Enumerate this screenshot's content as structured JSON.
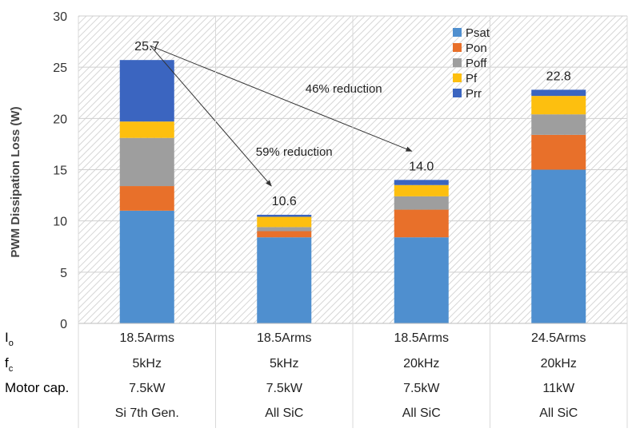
{
  "chart_data": {
    "type": "bar",
    "stacked": true,
    "ylabel": "PWM Dissipation  Loss (W)",
    "ylim": [
      0,
      30
    ],
    "yticks": [
      0,
      5,
      10,
      15,
      20,
      25,
      30
    ],
    "grid": true,
    "legend_position": "top-right",
    "categories": [
      [
        "18.5Arms",
        "5kHz",
        "7.5kW",
        "Si 7th Gen."
      ],
      [
        "18.5Arms",
        "5kHz",
        "7.5kW",
        "All SiC"
      ],
      [
        "18.5Arms",
        "20kHz",
        "7.5kW",
        "All SiC"
      ],
      [
        "24.5Arms",
        "20kHz",
        "11kW",
        "All SiC"
      ]
    ],
    "row_labels": [
      {
        "main": "I",
        "sub": "o"
      },
      {
        "main": "f",
        "sub": "c"
      },
      {
        "main": "Motor cap.",
        "sub": ""
      },
      {
        "main": "",
        "sub": ""
      }
    ],
    "series": [
      {
        "name": "Psat",
        "color": "#4f8fcf",
        "values": [
          11.0,
          8.4,
          8.4,
          15.0
        ]
      },
      {
        "name": "Pon",
        "color": "#e8702a",
        "values": [
          2.4,
          0.6,
          2.7,
          3.4
        ]
      },
      {
        "name": "Poff",
        "color": "#9e9e9e",
        "values": [
          4.7,
          0.4,
          1.3,
          2.0
        ]
      },
      {
        "name": "Pf",
        "color": "#fdbf0f",
        "values": [
          1.6,
          1.0,
          1.1,
          1.8
        ]
      },
      {
        "name": "Prr",
        "color": "#3b65c0",
        "values": [
          6.0,
          0.2,
          0.5,
          0.6
        ]
      }
    ],
    "totals": [
      "25.7",
      "10.6",
      "14.0",
      "22.8"
    ],
    "annotations": [
      {
        "text": "59% reduction",
        "from_bar": 0,
        "to_bar": 1
      },
      {
        "text": "46% reduction",
        "from_bar": 0,
        "to_bar": 2
      }
    ]
  }
}
